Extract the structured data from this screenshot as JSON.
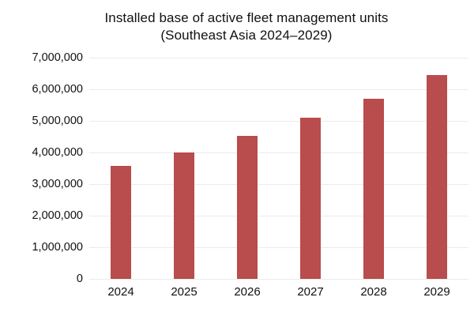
{
  "title": {
    "line1": "Installed base of active fleet management units",
    "line2": "(Southeast Asia 2024–2029)"
  },
  "chart_data": {
    "type": "bar",
    "title": "Installed base of active fleet management units (Southeast Asia 2024–2029)",
    "categories": [
      "2024",
      "2025",
      "2026",
      "2027",
      "2028",
      "2029"
    ],
    "values": [
      3570000,
      4000000,
      4520000,
      5100000,
      5700000,
      6440000
    ],
    "xlabel": "",
    "ylabel": "",
    "ylim": [
      0,
      7000000
    ],
    "ytick_interval": 1000000,
    "ytick_labels": [
      "0",
      "1,000,000",
      "2,000,000",
      "3,000,000",
      "4,000,000",
      "5,000,000",
      "6,000,000",
      "7,000,000"
    ],
    "grid": "horizontal",
    "legend": "none"
  },
  "colors": {
    "bar": "#b94c4c",
    "grid": "#ebebeb",
    "text": "#111111",
    "background": "#ffffff"
  }
}
